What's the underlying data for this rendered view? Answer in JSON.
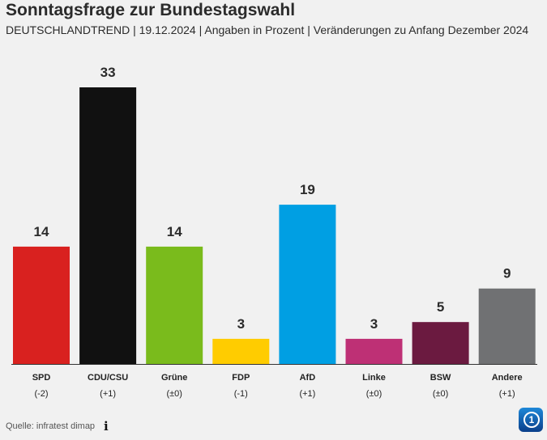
{
  "header": {
    "title": "Sonntagsfrage zur Bundestagswahl",
    "subtitle": "DEUTSCHLANDTREND | 19.12.2024 | Angaben in Prozent | Veränderungen zu Anfang Dezember 2024"
  },
  "chart_data": {
    "type": "bar",
    "categories": [
      "SPD",
      "CDU/CSU",
      "Grüne",
      "FDP",
      "AfD",
      "Linke",
      "BSW",
      "Andere"
    ],
    "values": [
      14,
      33,
      14,
      3,
      19,
      3,
      5,
      9
    ],
    "changes": [
      "(-2)",
      "(+1)",
      "(±0)",
      "(-1)",
      "(+1)",
      "(±0)",
      "(±0)",
      "(+1)"
    ],
    "colors": [
      "#d9211f",
      "#111111",
      "#7abb1c",
      "#ffcc00",
      "#009fe3",
      "#be3075",
      "#6b1a40",
      "#707173"
    ],
    "ylim": [
      0,
      33
    ],
    "grid": false
  },
  "footer": {
    "source": "Quelle: infratest dimap",
    "info_icon": "info-icon",
    "logo": "tagesschau-logo"
  }
}
